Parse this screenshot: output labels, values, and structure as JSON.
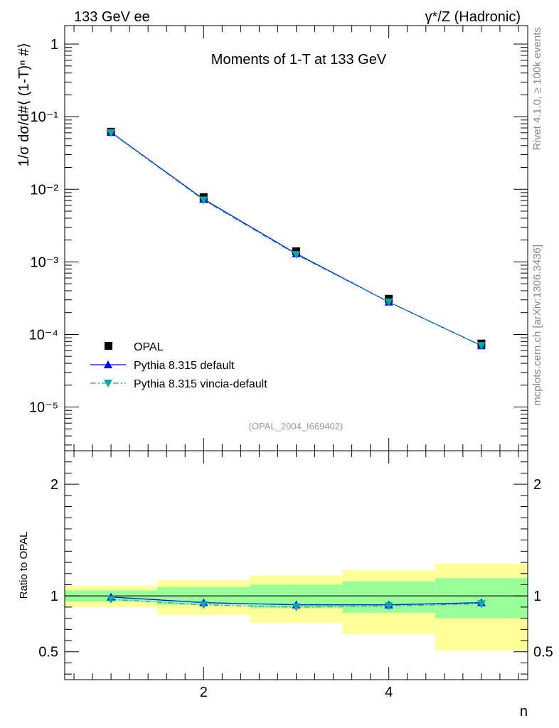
{
  "header": {
    "left": "133 GeV ee",
    "right": "γ*/Z (Hadronic)"
  },
  "side_labels": {
    "rivet": "Rivet 4.1.0, ≥ 100k events",
    "mcplots": "mcplots.cern.ch [arXiv:1306.3436]"
  },
  "colors": {
    "opal": "#000000",
    "pythia_default": "#0000ff",
    "vincia": "#00aaaa",
    "band_inner": "#99ff99",
    "band_outer": "#ffff99"
  },
  "chart_data": [
    {
      "type": "line",
      "scale": "log",
      "title": "Moments of 1-T at 133 GeV",
      "watermark": "(OPAL_2004_I669402)",
      "ylabel": "1/σ  dσ/d#⟨ (1-T)ⁿ #⟩",
      "xlim": [
        0.5,
        5.5
      ],
      "ylim": [
        2.5e-06,
        1.8
      ],
      "y_ticks": [
        {
          "value": 1,
          "label": "1"
        },
        {
          "value": 0.1,
          "label": "10⁻¹"
        },
        {
          "value": 0.01,
          "label": "10⁻²"
        },
        {
          "value": 0.001,
          "label": "10⁻³"
        },
        {
          "value": 0.0001,
          "label": "10⁻⁴"
        },
        {
          "value": 1e-05,
          "label": "10⁻⁵"
        }
      ],
      "x": [
        1,
        2,
        3,
        4,
        5
      ],
      "series": [
        {
          "name": "OPAL",
          "marker": "square",
          "values": [
            0.062,
            0.0078,
            0.0014,
            0.00031,
            7.5e-05
          ]
        },
        {
          "name": "Pythia 8.315 default",
          "marker": "triangle-up",
          "line": "solid",
          "values": [
            0.061,
            0.0073,
            0.0013,
            0.00028,
            7e-05
          ]
        },
        {
          "name": "Pythia 8.315 vincia-default",
          "marker": "triangle-down",
          "line": "dashdot",
          "values": [
            0.06,
            0.0071,
            0.00126,
            0.00028,
            7e-05
          ]
        }
      ],
      "legend": [
        "OPAL",
        "Pythia 8.315 default",
        "Pythia 8.315 vincia-default"
      ],
      "legend_position": "bottom-left"
    },
    {
      "type": "line",
      "title": "",
      "ylabel": "Ratio to OPAL",
      "xlabel": "n",
      "xlim": [
        0.5,
        5.5
      ],
      "ylim": [
        0.25,
        2.3
      ],
      "y_ticks": [
        {
          "value": 0.5,
          "label": "0.5"
        },
        {
          "value": 1,
          "label": "1"
        },
        {
          "value": 2,
          "label": "2"
        }
      ],
      "x_ticks": [
        {
          "value": 2,
          "label": "2"
        },
        {
          "value": 4,
          "label": "4"
        }
      ],
      "bands": [
        {
          "lo": 0.5,
          "hi": 1.5,
          "inner": [
            0.95,
            1.05
          ],
          "outer": [
            0.9,
            1.09
          ]
        },
        {
          "lo": 1.5,
          "hi": 2.5,
          "inner": [
            0.92,
            1.08
          ],
          "outer": [
            0.83,
            1.14
          ]
        },
        {
          "lo": 2.5,
          "hi": 3.5,
          "inner": [
            0.89,
            1.1
          ],
          "outer": [
            0.76,
            1.18
          ]
        },
        {
          "lo": 3.5,
          "hi": 4.5,
          "inner": [
            0.85,
            1.13
          ],
          "outer": [
            0.66,
            1.23
          ]
        },
        {
          "lo": 4.5,
          "hi": 5.5,
          "inner": [
            0.8,
            1.16
          ],
          "outer": [
            0.51,
            1.29
          ]
        }
      ],
      "x": [
        1,
        2,
        3,
        4,
        5
      ],
      "series": [
        {
          "name": "Pythia 8.315 default",
          "marker": "triangle-up",
          "line": "solid",
          "values": [
            0.99,
            0.94,
            0.92,
            0.92,
            0.94
          ]
        },
        {
          "name": "Pythia 8.315 vincia-default",
          "marker": "triangle-down",
          "line": "dashdot",
          "values": [
            0.97,
            0.92,
            0.9,
            0.91,
            0.93
          ]
        }
      ]
    }
  ]
}
